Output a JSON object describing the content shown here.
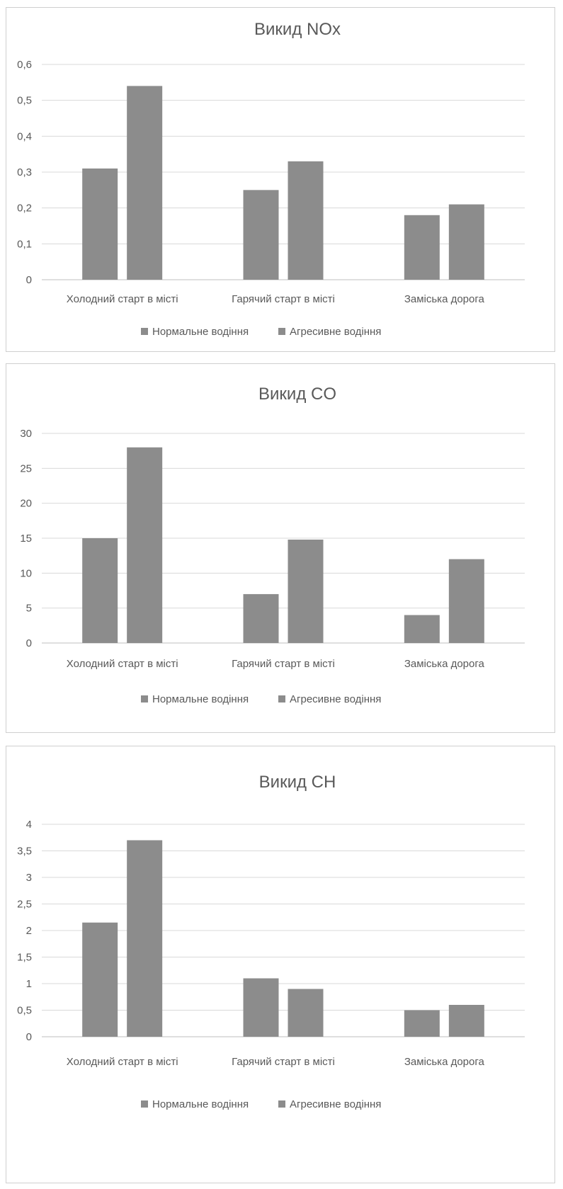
{
  "chart_data": [
    {
      "type": "bar",
      "title": "Викид NOx",
      "categories": [
        "Холодний старт в місті",
        "Гарячий старт в місті",
        "Заміська дорога"
      ],
      "series": [
        {
          "name": "Нормальне водіння",
          "values": [
            0.31,
            0.25,
            0.18
          ]
        },
        {
          "name": "Агресивне водіння",
          "values": [
            0.54,
            0.33,
            0.21
          ]
        }
      ],
      "y_ticks": [
        "0",
        "0,1",
        "0,2",
        "0,3",
        "0,4",
        "0,5",
        "0,6"
      ],
      "ylim": [
        0,
        0.6
      ],
      "grid": true,
      "legend": "bottom",
      "colors": [
        "#8c8c8c",
        "#8c8c8c"
      ]
    },
    {
      "type": "bar",
      "title": "Викид CO",
      "categories": [
        "Холодний старт в місті",
        "Гарячий старт в місті",
        "Заміська дорога"
      ],
      "series": [
        {
          "name": "Нормальне водіння",
          "values": [
            15,
            7,
            4
          ]
        },
        {
          "name": "Агресивне водіння",
          "values": [
            28,
            14.8,
            12
          ]
        }
      ],
      "y_ticks": [
        "0",
        "5",
        "10",
        "15",
        "20",
        "25",
        "30"
      ],
      "ylim": [
        0,
        30
      ],
      "grid": true,
      "legend": "bottom",
      "colors": [
        "#8c8c8c",
        "#8c8c8c"
      ]
    },
    {
      "type": "bar",
      "title": "Викид CH",
      "categories": [
        "Холодний старт в місті",
        "Гарячий старт в місті",
        "Заміська дорога"
      ],
      "series": [
        {
          "name": "Нормальне водіння",
          "values": [
            2.15,
            1.1,
            0.5
          ]
        },
        {
          "name": "Агресивне водіння",
          "values": [
            3.7,
            0.9,
            0.6
          ]
        }
      ],
      "y_ticks": [
        "0",
        "0,5",
        "1",
        "1,5",
        "2",
        "2,5",
        "3",
        "3,5",
        "4"
      ],
      "ylim": [
        0,
        4
      ],
      "grid": true,
      "legend": "bottom",
      "colors": [
        "#8c8c8c",
        "#8c8c8c"
      ]
    }
  ]
}
